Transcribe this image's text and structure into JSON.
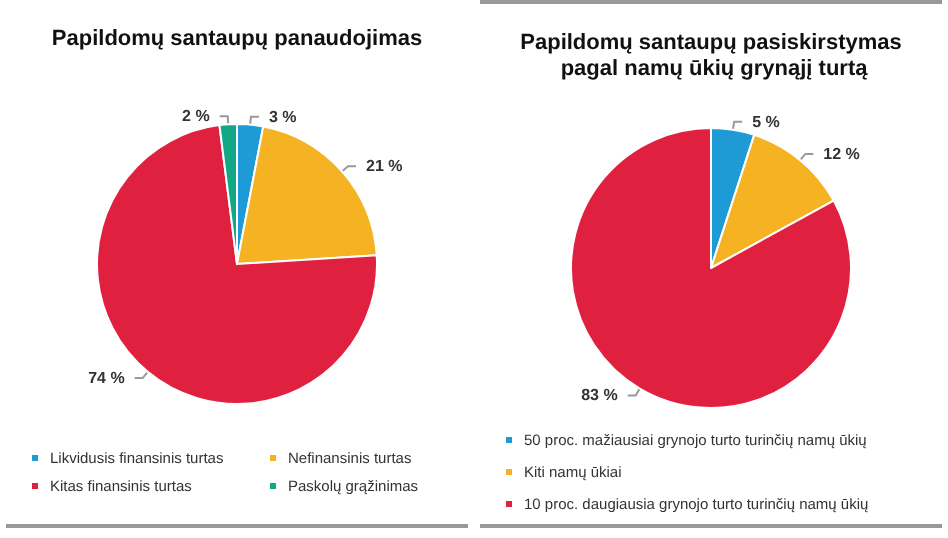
{
  "chart_data": [
    {
      "type": "pie",
      "title": "Papildomų santaupų panaudojimas",
      "categories": [
        "Likvidusis finansinis turtas",
        "Nefinansinis turtas",
        "Kitas finansinis turtas",
        "Paskolų grąžinimas"
      ],
      "values": [
        3,
        21,
        74,
        2
      ],
      "colors": [
        "#1e9ad6",
        "#f5b324",
        "#e0203f",
        "#13a885"
      ],
      "value_labels": [
        "3 %",
        "21 %",
        "74 %",
        "2 %"
      ],
      "legend": "bottom"
    },
    {
      "type": "pie",
      "title": "Papildomų santaupų pasiskirstymas pagal namų ūkių grynąjį turtą",
      "categories": [
        "50 proc. mažiausiai grynojo turto turinčių namų ūkių",
        "Kiti namų ūkiai",
        "10 proc. daugiausia grynojo turto turinčių namų ūkių"
      ],
      "values": [
        5,
        12,
        83
      ],
      "colors": [
        "#1e9ad6",
        "#f5b324",
        "#e0203f"
      ],
      "value_labels": [
        "5 %",
        "12 %",
        "83 %"
      ],
      "legend": "bottom"
    }
  ]
}
